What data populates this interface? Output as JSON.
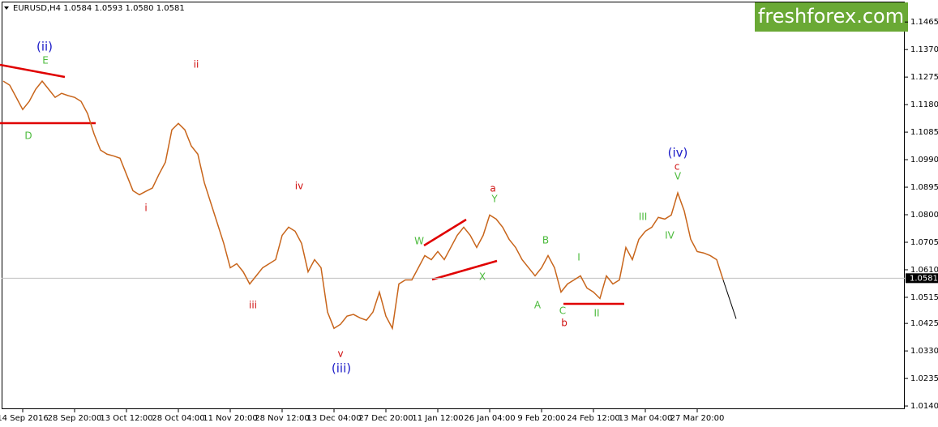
{
  "chart_data": {
    "type": "line",
    "title": "EURUSD,H4  1.0584 1.0593 1.0580 1.0581",
    "logo": "freshforex.com",
    "categories": [
      null,
      null,
      null,
      "14 Sep 2016",
      null,
      null,
      null,
      null,
      null,
      null,
      null,
      "28 Sep 20:00",
      null,
      null,
      null,
      null,
      null,
      null,
      null,
      "13 Oct 12:00",
      null,
      null,
      null,
      null,
      null,
      null,
      null,
      "28 Oct 04:00",
      null,
      null,
      null,
      null,
      null,
      null,
      null,
      "11 Nov 20:00",
      null,
      null,
      null,
      null,
      null,
      null,
      null,
      "28 Nov 12:00",
      null,
      null,
      null,
      null,
      null,
      null,
      null,
      "13 Dec 04:00",
      null,
      null,
      null,
      null,
      null,
      null,
      null,
      "27 Dec 20:00",
      null,
      null,
      null,
      null,
      null,
      null,
      null,
      "11 Jan 12:00",
      null,
      null,
      null,
      null,
      null,
      null,
      null,
      "26 Jan 04:00",
      null,
      null,
      null,
      null,
      null,
      null,
      null,
      "9 Feb 20:00",
      null,
      null,
      null,
      null,
      null,
      null,
      null,
      "24 Feb 12:00",
      null,
      null,
      null,
      null,
      null,
      null,
      null,
      "13 Mar 04:00",
      null,
      null,
      null,
      null,
      null,
      null,
      null,
      "27 Mar 20:00",
      null,
      null,
      null,
      null,
      null,
      null
    ],
    "values": [
      1.1261,
      1.1247,
      1.1205,
      1.1163,
      1.1191,
      1.1233,
      1.1261,
      1.1233,
      1.1205,
      1.1219,
      1.1211,
      1.1205,
      1.1191,
      1.1149,
      1.1079,
      1.1023,
      1.1009,
      1.1003,
      1.0995,
      1.0939,
      1.0883,
      1.0869,
      1.0881,
      1.0892,
      1.0939,
      1.0981,
      1.1093,
      1.1115,
      1.1093,
      1.1037,
      1.1009,
      1.0911,
      1.0841,
      1.0771,
      1.0701,
      1.0617,
      1.0631,
      1.0603,
      1.0561,
      1.0589,
      1.0617,
      1.0631,
      1.0645,
      1.0729,
      1.0757,
      1.0743,
      1.0701,
      1.0603,
      1.0645,
      1.0617,
      1.0464,
      1.0408,
      1.0422,
      1.045,
      1.0456,
      1.0444,
      1.0436,
      1.0464,
      1.0533,
      1.045,
      1.0408,
      1.0561,
      1.0575,
      1.0575,
      1.0617,
      1.0659,
      1.0645,
      1.0673,
      1.0645,
      1.0687,
      1.0729,
      1.0757,
      1.0729,
      1.0687,
      1.0729,
      1.0799,
      1.0785,
      1.0757,
      1.0715,
      1.0687,
      1.0645,
      1.0617,
      1.0589,
      1.0617,
      1.0659,
      1.0617,
      1.0533,
      1.0561,
      1.0575,
      1.0589,
      1.0547,
      1.0533,
      1.0511,
      1.0589,
      1.0561,
      1.0575,
      1.0687,
      1.0645,
      1.0715,
      1.0743,
      1.0757,
      1.0791,
      1.0785,
      1.0799,
      1.0875,
      1.0813,
      1.0715,
      1.0673,
      1.0668,
      1.0659,
      1.0645,
      1.0575,
      null,
      null
    ],
    "color": "#c8651b",
    "projection": {
      "values": [
        null,
        null,
        null,
        null,
        null,
        null,
        null,
        null,
        null,
        null,
        null,
        null,
        null,
        null,
        null,
        null,
        null,
        null,
        null,
        null,
        null,
        null,
        null,
        null,
        null,
        null,
        null,
        null,
        null,
        null,
        null,
        null,
        null,
        null,
        null,
        null,
        null,
        null,
        null,
        null,
        null,
        null,
        null,
        null,
        null,
        null,
        null,
        null,
        null,
        null,
        null,
        null,
        null,
        null,
        null,
        null,
        null,
        null,
        null,
        null,
        null,
        null,
        null,
        null,
        null,
        null,
        null,
        null,
        null,
        null,
        null,
        null,
        null,
        null,
        null,
        null,
        null,
        null,
        null,
        null,
        null,
        null,
        null,
        null,
        null,
        null,
        null,
        null,
        null,
        null,
        null,
        null,
        null,
        null,
        null,
        null,
        null,
        null,
        null,
        null,
        null,
        null,
        null,
        null,
        null,
        null,
        null,
        null,
        null,
        null,
        null,
        1.0575,
        1.0508,
        1.0441
      ],
      "color": "#000000"
    },
    "last_price": 1.0581,
    "ylim": [
      1.0129,
      1.1527
    ],
    "yticks": [
      1.1465,
      {
        "value": 1.137,
        "label": "1.1370"
      },
      1.1275,
      {
        "value": 1.118,
        "label": "1.1180"
      },
      1.1085,
      {
        "value": 1.099,
        "label": "1.0990"
      },
      1.0895,
      {
        "value": 1.08,
        "label": "1.0800"
      },
      1.0705,
      {
        "value": 1.061,
        "label": "1.0610"
      },
      1.0515,
      1.0425,
      {
        "value": 1.033,
        "label": "1.0330"
      },
      1.0235,
      {
        "value": 1.014,
        "label": "1.0140"
      }
    ],
    "annotations": [
      "(ii)",
      "E",
      "D",
      "ii",
      "i",
      "iv",
      "iii",
      "v",
      "(iii)",
      "W",
      "X",
      "a",
      "Y",
      "B",
      "A",
      "C",
      "b",
      "I",
      "II",
      "III",
      "IV",
      "(iv)",
      "c",
      "V"
    ]
  }
}
